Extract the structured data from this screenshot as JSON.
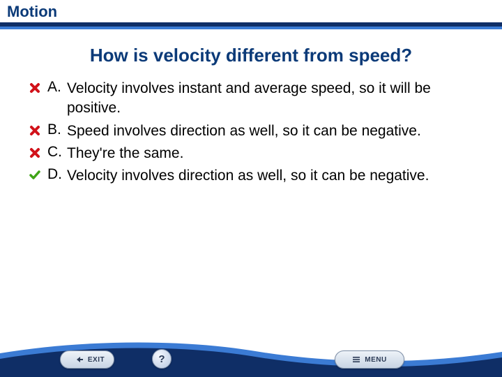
{
  "header": {
    "title": "Motion",
    "title_color": "#0b3a78",
    "title_fontsize": 22,
    "rule_dark": "#0f2e66",
    "rule_light": "#3b7bd4"
  },
  "question": {
    "text": "How is velocity different from speed?",
    "color": "#0b3a78",
    "fontsize": 26
  },
  "answers": {
    "fontsize": 21,
    "color": "#000000",
    "items": [
      {
        "letter": "A.",
        "text": "Velocity involves instant and average speed, so it will be positive.",
        "status": "wrong"
      },
      {
        "letter": "B.",
        "text": "Speed involves direction as well, so it can be negative.",
        "status": "wrong"
      },
      {
        "letter": "C.",
        "text": "They're the same.",
        "status": "wrong"
      },
      {
        "letter": "D.",
        "text": "Velocity involves direction as well, so it can be negative.",
        "status": "correct"
      }
    ]
  },
  "icons": {
    "wrong_color": "#d1121a",
    "correct_color": "#3fa416"
  },
  "footer": {
    "band_dark": "#0f2e66",
    "band_light": "#3b7bd4",
    "exit_label": "EXIT",
    "help_label": "?",
    "menu_label": "MENU"
  }
}
